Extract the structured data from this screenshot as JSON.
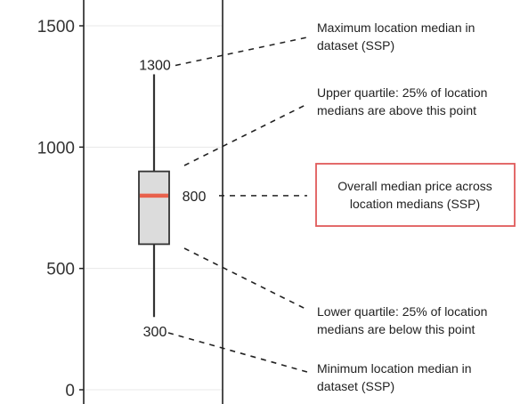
{
  "chart_data": {
    "type": "box",
    "yticks": [
      0,
      500,
      1000,
      1500
    ],
    "ylim": [
      -50,
      1590
    ],
    "grid": true,
    "box": {
      "min": 300,
      "q1": 600,
      "median": 800,
      "q3": 900,
      "max": 1300
    },
    "value_labels": {
      "max": "1300",
      "median": "800",
      "min": "300"
    },
    "annotations": {
      "max": [
        "Maximum location median in",
        "dataset (SSP)"
      ],
      "q3": [
        "Upper quartile: 25% of location",
        "medians are above this point"
      ],
      "median": [
        "Overall median price across",
        "location medians (SSP)"
      ],
      "q1": [
        "Lower quartile: 25% of location",
        "medians are below this point"
      ],
      "min": [
        "Minimum location median in",
        "dataset (SSP)"
      ]
    },
    "colors": {
      "box_fill": "#dcdcdc",
      "median_line": "#e8614c",
      "highlight_border": "#e05a5a",
      "grid": "#e8e8e8",
      "frame": "#222222"
    }
  }
}
